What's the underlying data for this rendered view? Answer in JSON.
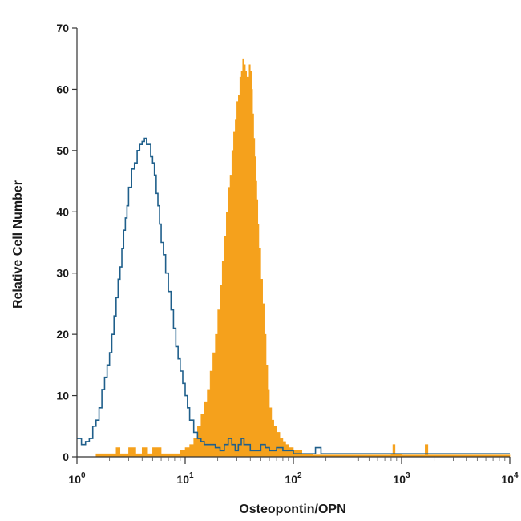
{
  "chart_data": {
    "type": "area",
    "xlabel": "Osteopontin/OPN",
    "ylabel": "Relative Cell Number",
    "x_scale": "log",
    "xlim": [
      1,
      10000
    ],
    "ylim": [
      0,
      70
    ],
    "y_ticks": [
      "0",
      "10",
      "20",
      "30",
      "40",
      "50",
      "60",
      "70"
    ],
    "x_ticks": [
      {
        "base": "10",
        "exp": "0"
      },
      {
        "base": "10",
        "exp": "1"
      },
      {
        "base": "10",
        "exp": "2"
      },
      {
        "base": "10",
        "exp": "3"
      },
      {
        "base": "10",
        "exp": "4"
      }
    ],
    "grid": false,
    "series": [
      {
        "style": "filled",
        "color": "#f5a11c",
        "x": [
          1,
          1.2,
          1.5,
          2,
          2.3,
          2.5,
          3,
          3.5,
          4,
          4.5,
          5,
          6,
          7,
          8,
          9,
          10,
          11,
          12,
          13,
          14,
          15,
          16,
          17,
          18,
          19,
          20,
          21,
          22,
          23,
          24,
          25,
          26,
          27,
          28,
          29,
          30,
          31,
          32,
          33,
          34,
          35,
          36,
          37,
          38,
          39,
          40,
          41,
          42,
          43,
          44,
          45,
          46,
          47,
          48,
          50,
          52,
          54,
          56,
          58,
          60,
          63,
          66,
          70,
          75,
          80,
          85,
          90,
          100,
          110,
          120,
          130,
          140,
          150,
          200,
          300,
          500,
          700,
          800,
          830,
          870,
          1000,
          1500,
          1650,
          1750,
          2000,
          5000,
          10000
        ],
        "y": [
          0,
          0,
          0.5,
          0.5,
          1.5,
          0.5,
          1.5,
          0.5,
          1.5,
          0.5,
          1.5,
          0.5,
          0.5,
          0.5,
          1,
          1.5,
          2,
          3,
          5,
          7,
          9,
          11,
          14,
          17,
          20,
          24,
          28,
          32,
          36,
          40,
          44,
          46,
          50,
          53,
          55,
          58,
          59,
          62,
          63,
          65,
          64,
          63,
          62,
          62,
          64,
          63,
          60,
          56,
          52,
          49,
          45,
          42,
          38,
          34,
          29,
          25,
          20,
          15,
          11,
          8,
          6,
          5,
          4,
          3,
          2.5,
          2,
          1.5,
          1,
          1,
          0.5,
          0.5,
          0.5,
          0.3,
          0.3,
          0.3,
          0.3,
          0.3,
          0.5,
          2,
          0.5,
          0.3,
          0.3,
          2,
          0.3,
          0.3,
          0.3,
          0.3
        ]
      },
      {
        "style": "outline",
        "color": "#1f5f8b",
        "x": [
          1,
          1.1,
          1.2,
          1.3,
          1.4,
          1.5,
          1.6,
          1.7,
          1.8,
          1.9,
          2,
          2.1,
          2.2,
          2.3,
          2.4,
          2.5,
          2.6,
          2.7,
          2.8,
          2.9,
          3,
          3.2,
          3.4,
          3.6,
          3.8,
          4,
          4.2,
          4.4,
          4.6,
          4.8,
          5,
          5.2,
          5.4,
          5.6,
          5.8,
          6,
          6.3,
          6.6,
          7,
          7.4,
          7.8,
          8.2,
          8.6,
          9,
          9.5,
          10,
          10.5,
          11,
          12,
          13,
          14,
          15,
          17,
          19,
          21,
          23,
          25,
          27,
          29,
          31,
          33,
          35,
          40,
          45,
          50,
          55,
          60,
          70,
          80,
          90,
          100,
          120,
          140,
          160,
          180,
          200,
          300,
          1000,
          10000
        ],
        "y": [
          3,
          2,
          2.5,
          3,
          5,
          6,
          8,
          11,
          13,
          15,
          17,
          20,
          23,
          26,
          29,
          31,
          34,
          37,
          39,
          41,
          44,
          47,
          48,
          50,
          51,
          51.5,
          52,
          51,
          51,
          49,
          48,
          46,
          43,
          41,
          38,
          35,
          33,
          30,
          27,
          24,
          21,
          18,
          16,
          14,
          12,
          10,
          8,
          6,
          4,
          3,
          2.5,
          2,
          2,
          1.5,
          1,
          2,
          3,
          2,
          1,
          2,
          3,
          2,
          1,
          1,
          2,
          1.5,
          1,
          1.5,
          1,
          1,
          0.5,
          0.5,
          0.5,
          1.5,
          0.5,
          0.5,
          0.5,
          0.5,
          0.5
        ]
      }
    ]
  }
}
